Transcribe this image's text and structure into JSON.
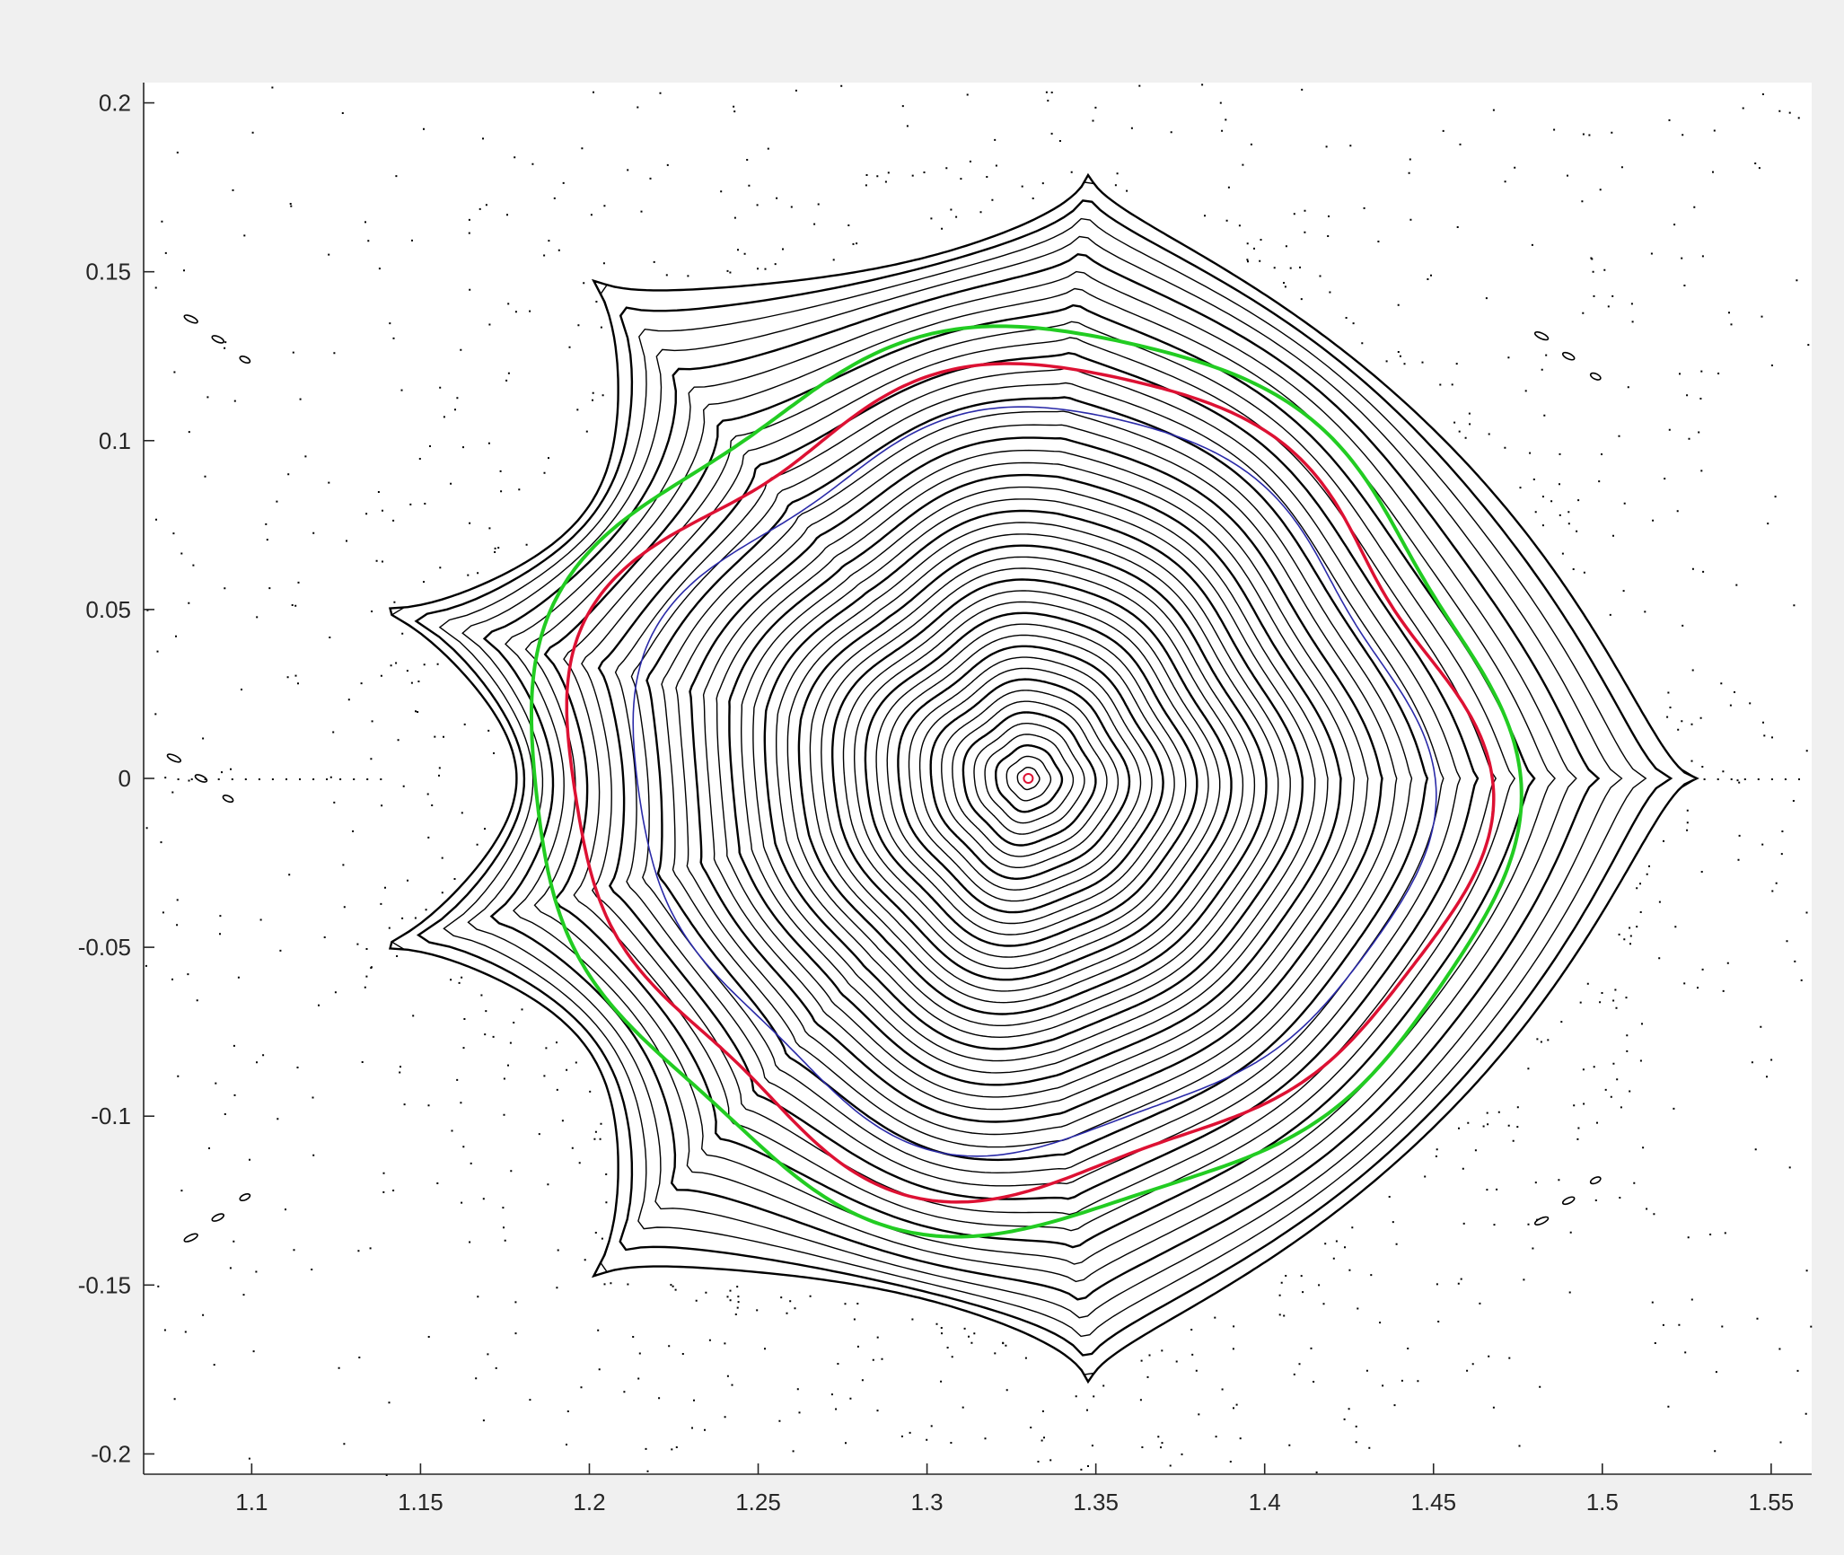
{
  "chart_data": {
    "type": "line",
    "title": "",
    "xlabel": "",
    "ylabel": "",
    "xlim": [
      1.068,
      1.562
    ],
    "ylim": [
      -0.206,
      0.206
    ],
    "x_ticks": [
      1.1,
      1.15,
      1.2,
      1.25,
      1.3,
      1.35,
      1.4,
      1.45,
      1.5,
      1.55
    ],
    "y_ticks": [
      0.2,
      0.15,
      0.1,
      0.05,
      0,
      -0.05,
      -0.1,
      -0.15,
      -0.2
    ],
    "x_tick_labels": [
      "1.1",
      "1.15",
      "1.2",
      "1.25",
      "1.3",
      "1.35",
      "1.4",
      "1.45",
      "1.5",
      "1.55"
    ],
    "y_tick_labels": [
      "0.2",
      "0.15",
      "0.1",
      "0.05",
      "0",
      "-0.05",
      "-0.1",
      "-0.15",
      "-0.2"
    ],
    "grid": false,
    "legend": "none",
    "magnetic_axis": [
      1.33,
      0.0
    ],
    "separatrix_vertices": [
      [
        1.348,
        0.18
      ],
      [
        1.2,
        0.149
      ],
      [
        1.135,
        0.051
      ],
      [
        1.135,
        -0.051
      ],
      [
        1.2,
        -0.149
      ],
      [
        1.348,
        -0.18
      ],
      [
        1.528,
        0.0
      ]
    ],
    "series": [
      {
        "color": "#000000",
        "kind": "flux-surfaces",
        "count": 46
      },
      {
        "color": "#22cc22",
        "kind": "contour",
        "center": [
          1.327,
          0.0
        ],
        "rx": 0.143,
        "ry": 0.131,
        "harmonics": [
          0.03,
          0.02
        ]
      },
      {
        "color": "#dd1133",
        "kind": "contour",
        "center": [
          1.328,
          0.0
        ],
        "rx": 0.132,
        "ry": 0.119,
        "harmonics": [
          0.045,
          0.025
        ]
      },
      {
        "color": "#2a2aa8",
        "kind": "contour",
        "center": [
          1.33,
          0.0
        ],
        "rx": 0.115,
        "ry": 0.107,
        "harmonics": [
          0.04,
          0.02
        ]
      }
    ],
    "island_chains": [
      [
        1.09,
        0.13
      ],
      [
        1.09,
        -0.13
      ],
      [
        1.49,
        0.125
      ],
      [
        1.49,
        -0.125
      ],
      [
        1.085,
        0.0
      ]
    ]
  }
}
